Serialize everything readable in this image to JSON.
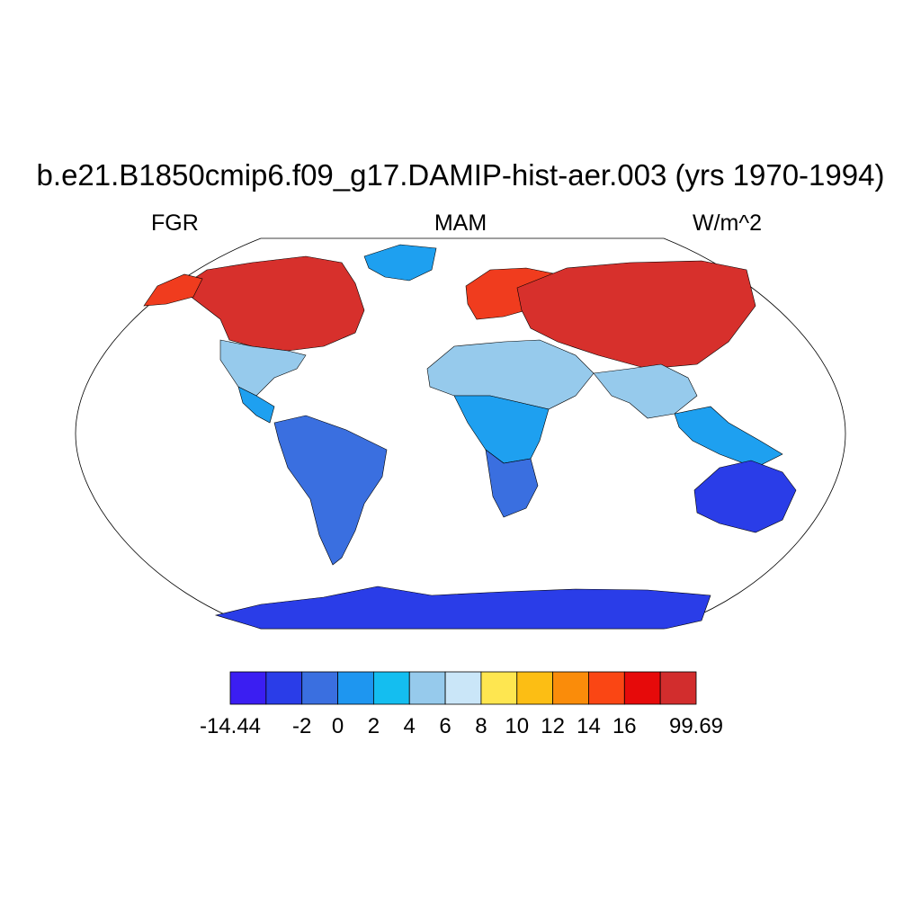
{
  "title": "b.e21.B1850cmip6.f09_g17.DAMIP-hist-aer.003 (yrs 1970-1994)",
  "subtitle_left": "FGR",
  "subtitle_center": "MAM",
  "subtitle_right": "W/m^2",
  "map": {
    "projection": "robinson",
    "background": "#ffffff",
    "regions": [
      {
        "name": "Canada / Northern US",
        "color": "#d7302c"
      },
      {
        "name": "Alaska",
        "color": "#f03c1e"
      },
      {
        "name": "Southern US",
        "color": "#96caec"
      },
      {
        "name": "Central America",
        "color": "#1ea0f0"
      },
      {
        "name": "South America",
        "color": "#3a6fe0"
      },
      {
        "name": "Greenland",
        "color": "#1ea0f0"
      },
      {
        "name": "Europe",
        "color": "#f03c1e"
      },
      {
        "name": "Siberia / Central Asia",
        "color": "#d7302c"
      },
      {
        "name": "North Africa / Middle East",
        "color": "#96caec"
      },
      {
        "name": "Central Africa",
        "color": "#1ea0f0"
      },
      {
        "name": "Southern Africa",
        "color": "#3a6fe0"
      },
      {
        "name": "South Asia",
        "color": "#96caec"
      },
      {
        "name": "Southeast Asia",
        "color": "#1ea0f0"
      },
      {
        "name": "Australia",
        "color": "#2a3de8"
      },
      {
        "name": "Antarctica",
        "color": "#2a3de8"
      }
    ]
  },
  "colorbar": {
    "colors": [
      "#3b1ef2",
      "#2a3de8",
      "#3a6fe0",
      "#1e96f0",
      "#14bef0",
      "#96caec",
      "#cae6f8",
      "#fee650",
      "#fcbe14",
      "#fa8c0a",
      "#fa4614",
      "#e60a0a",
      "#d22d2d"
    ],
    "labels": [
      "-14.44",
      "-2",
      "0",
      "2",
      "4",
      "6",
      "8",
      "10",
      "12",
      "14",
      "16",
      "99.69"
    ],
    "label_boundaries": [
      0,
      2,
      3,
      4,
      5,
      6,
      7,
      8,
      9,
      10,
      11,
      13
    ]
  }
}
